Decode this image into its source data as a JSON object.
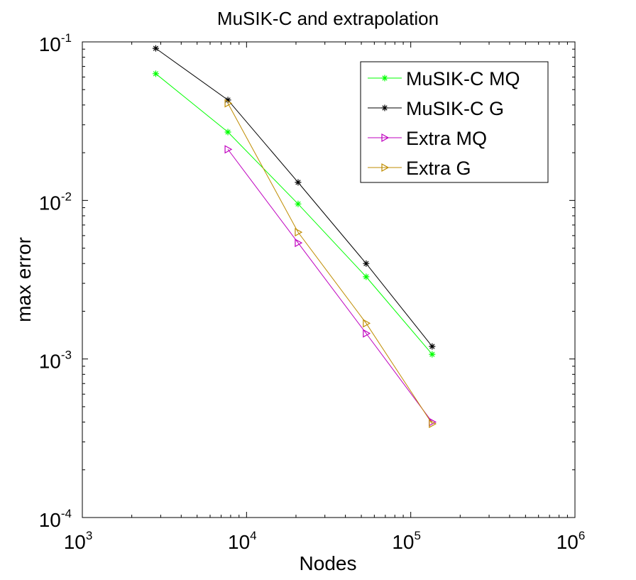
{
  "chart_data": {
    "type": "line",
    "title": "MuSIK-C and extrapolation",
    "xlabel": "Nodes",
    "ylabel": "max error",
    "xscale": "log",
    "yscale": "log",
    "xlim": [
      1000,
      1000000
    ],
    "ylim": [
      0.0001,
      0.1
    ],
    "grid": false,
    "legend_position": "top-right",
    "x_ticks": [
      {
        "base": "10",
        "exp": "3"
      },
      {
        "base": "10",
        "exp": "4"
      },
      {
        "base": "10",
        "exp": "5"
      },
      {
        "base": "10",
        "exp": "6"
      }
    ],
    "y_ticks": [
      {
        "base": "10",
        "exp": "-4"
      },
      {
        "base": "10",
        "exp": "-3"
      },
      {
        "base": "10",
        "exp": "-2"
      },
      {
        "base": "10",
        "exp": "-1"
      }
    ],
    "series": [
      {
        "name": "MuSIK-C MQ",
        "color": "#00ff00",
        "marker": "asterisk",
        "x": [
          2800,
          7700,
          20600,
          53500,
          135000
        ],
        "y": [
          0.063,
          0.027,
          0.0095,
          0.0033,
          0.00107
        ]
      },
      {
        "name": "MuSIK-C G",
        "color": "#000000",
        "marker": "asterisk",
        "x": [
          2800,
          7700,
          20600,
          53500,
          135000
        ],
        "y": [
          0.091,
          0.043,
          0.013,
          0.004,
          0.0012
        ]
      },
      {
        "name": "Extra MQ",
        "color": "#bf00bf",
        "marker": "triangle-right",
        "x": [
          7700,
          20600,
          53500,
          135000
        ],
        "y": [
          0.021,
          0.0054,
          0.00145,
          0.0004
        ]
      },
      {
        "name": "Extra G",
        "color": "#bf8c00",
        "marker": "triangle-right",
        "x": [
          7700,
          20600,
          53500,
          135000
        ],
        "y": [
          0.041,
          0.0063,
          0.00168,
          0.00039
        ]
      }
    ]
  }
}
